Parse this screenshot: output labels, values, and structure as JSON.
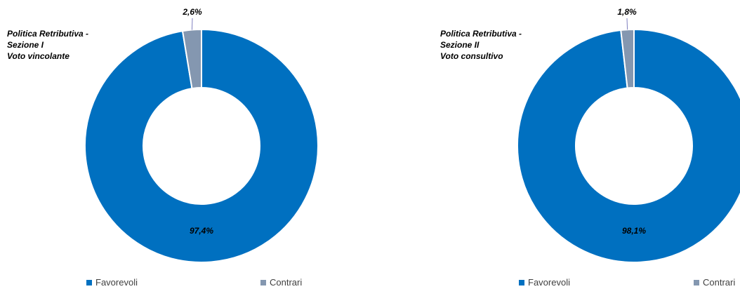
{
  "chart_data": [
    {
      "type": "pie",
      "title_lines": [
        "Politica Retributiva  -",
        "Sezione I",
        "Voto vincolante"
      ],
      "categories": [
        "Favorevoli",
        "Contrari"
      ],
      "values": [
        97.4,
        2.6
      ],
      "data_labels": [
        "97,4%",
        "2,6%"
      ],
      "colors": [
        "#0070C0",
        "#8497B0"
      ],
      "legend_position": "bottom"
    },
    {
      "type": "pie",
      "title_lines": [
        "Politica Retributiva  -",
        "Sezione II",
        "Voto consultivo"
      ],
      "categories": [
        "Favorevoli",
        "Contrari"
      ],
      "values": [
        98.1,
        1.8
      ],
      "data_labels": [
        "98,1%",
        "1,8%"
      ],
      "colors": [
        "#0070C0",
        "#8497B0"
      ],
      "legend_position": "bottom"
    }
  ]
}
